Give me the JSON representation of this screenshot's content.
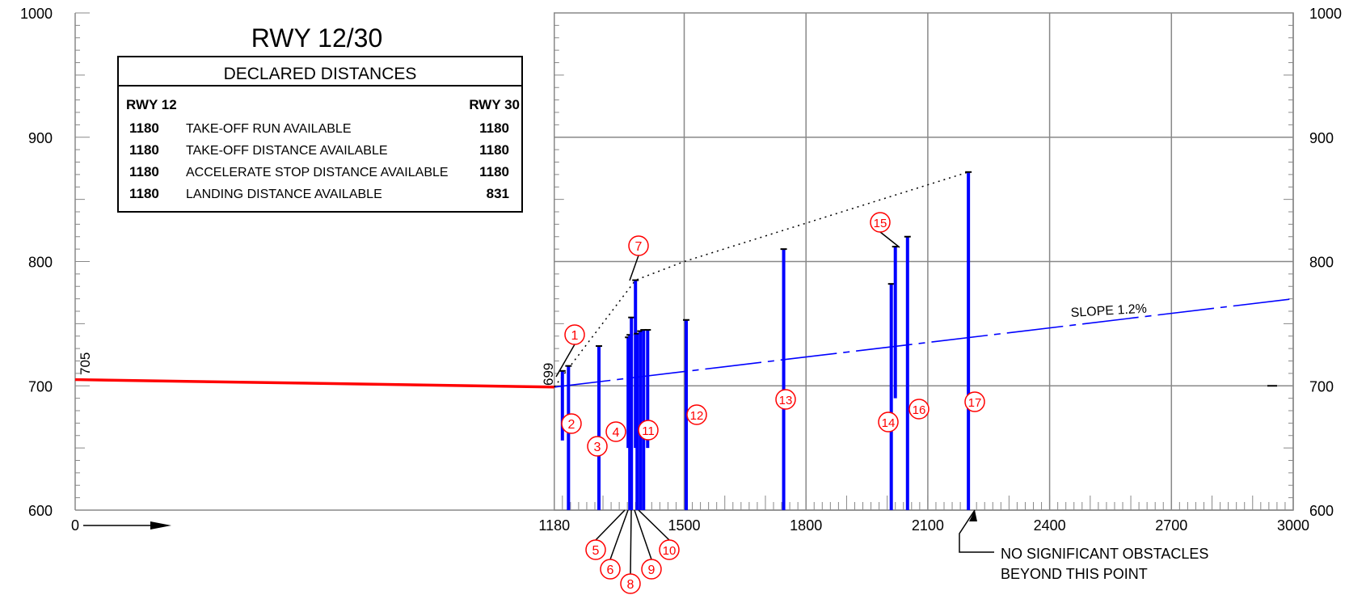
{
  "chart_data": {
    "type": "line",
    "title": "RWY 12/30",
    "xlim": [
      0,
      3000
    ],
    "ylim": [
      600,
      1000
    ],
    "x_ticks": [
      "0",
      "1180",
      "1500",
      "1800",
      "2100",
      "2400",
      "2700",
      "3000"
    ],
    "y_ticks_left": [
      "600",
      "700",
      "800",
      "900",
      "1000"
    ],
    "y_ticks_right": [
      "600",
      "700",
      "800",
      "900",
      "1000"
    ],
    "grid": true,
    "runway_profile": {
      "points": [
        [
          0,
          705
        ],
        [
          1180,
          699
        ]
      ],
      "labels": [
        "705",
        "699"
      ],
      "color": "#ff0000"
    },
    "slope_line": {
      "label": "SLOPE  1.2%",
      "points": [
        [
          1180,
          699
        ],
        [
          3000,
          770
        ]
      ],
      "color": "#0000ff"
    },
    "obstacle_envelope": [
      [
        1180,
        699
      ],
      [
        1380,
        785
      ],
      [
        1500,
        800
      ],
      [
        2200,
        872
      ]
    ],
    "obstacles": [
      {
        "id": "1",
        "x": 1200,
        "top": 712,
        "bottom": 656
      },
      {
        "id": "2",
        "x": 1215,
        "top": 716,
        "bottom": 600
      },
      {
        "id": "3",
        "x": 1290,
        "top": 732,
        "bottom": 600
      },
      {
        "id": "4",
        "x": 1362,
        "top": 739,
        "bottom": 650
      },
      {
        "id": "5",
        "x": 1366,
        "top": 741,
        "bottom": 600
      },
      {
        "id": "6",
        "x": 1370,
        "top": 755,
        "bottom": 600
      },
      {
        "id": "7",
        "x": 1380,
        "top": 785,
        "bottom": 650
      },
      {
        "id": "8",
        "x": 1384,
        "top": 742,
        "bottom": 600
      },
      {
        "id": "9",
        "x": 1392,
        "top": 744,
        "bottom": 600
      },
      {
        "id": "10",
        "x": 1400,
        "top": 745,
        "bottom": 600
      },
      {
        "id": "11",
        "x": 1410,
        "top": 745,
        "bottom": 650
      },
      {
        "id": "12",
        "x": 1505,
        "top": 753,
        "bottom": 600
      },
      {
        "id": "13",
        "x": 1745,
        "top": 810,
        "bottom": 600
      },
      {
        "id": "14",
        "x": 2010,
        "top": 782,
        "bottom": 600
      },
      {
        "id": "15",
        "x": 2020,
        "top": 812,
        "bottom": 690
      },
      {
        "id": "16",
        "x": 2050,
        "top": 820,
        "bottom": 600
      },
      {
        "id": "17",
        "x": 2200,
        "top": 872,
        "bottom": 600
      }
    ],
    "annotation": {
      "line1": "NO SIGNIFICANT OBSTACLES",
      "line2": "BEYOND THIS POINT"
    },
    "direction_label": "0"
  },
  "declared_distances": {
    "title": "DECLARED DISTANCES",
    "left_header": "RWY 12",
    "right_header": "RWY 30",
    "rows": [
      {
        "left": "1180",
        "label": "TAKE-OFF RUN AVAILABLE",
        "right": "1180"
      },
      {
        "left": "1180",
        "label": "TAKE-OFF DISTANCE AVAILABLE",
        "right": "1180"
      },
      {
        "left": "1180",
        "label": "ACCELERATE STOP DISTANCE AVAILABLE",
        "right": "1180"
      },
      {
        "left": "1180",
        "label": "LANDING DISTANCE AVAILABLE",
        "right": "831"
      }
    ]
  }
}
